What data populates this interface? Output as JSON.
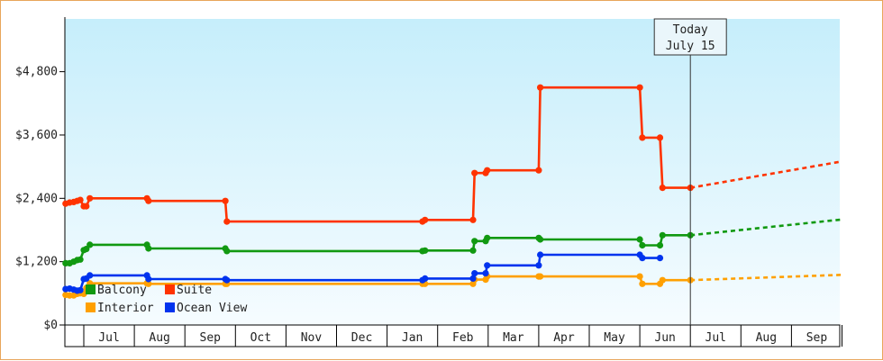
{
  "chart_data": {
    "type": "line",
    "title": "",
    "xlabel": "",
    "ylabel": "",
    "ylim": [
      0,
      5800
    ],
    "y_ticks": [
      {
        "value": 0,
        "label": "$0"
      },
      {
        "value": 1200,
        "label": "$1,200"
      },
      {
        "value": 2400,
        "label": "$2,400"
      },
      {
        "value": 3600,
        "label": "$3,600"
      },
      {
        "value": 4800,
        "label": "$4,800"
      }
    ],
    "x_range": [
      -0.36,
      15.0
    ],
    "x_ticks": [
      {
        "value": 0.5,
        "label": "Jul"
      },
      {
        "value": 1.5,
        "label": "Aug"
      },
      {
        "value": 2.5,
        "label": "Sep"
      },
      {
        "value": 3.5,
        "label": "Oct"
      },
      {
        "value": 4.5,
        "label": "Nov"
      },
      {
        "value": 5.5,
        "label": "Dec"
      },
      {
        "value": 6.5,
        "label": "Jan"
      },
      {
        "value": 7.5,
        "label": "Feb"
      },
      {
        "value": 8.5,
        "label": "Mar"
      },
      {
        "value": 9.5,
        "label": "Apr"
      },
      {
        "value": 10.5,
        "label": "May"
      },
      {
        "value": 11.5,
        "label": "Jun"
      },
      {
        "value": 12.5,
        "label": "Jul"
      },
      {
        "value": 13.5,
        "label": "Aug"
      },
      {
        "value": 14.5,
        "label": "Sep"
      }
    ],
    "today": {
      "x": 12.0,
      "line1": "Today",
      "line2": "July 15"
    },
    "grid": false,
    "legend_position": "bottom-left",
    "series": [
      {
        "name": "Suite",
        "color": "#ff3300",
        "points": [
          [
            -0.36,
            2300
          ],
          [
            -0.28,
            2320
          ],
          [
            -0.2,
            2330
          ],
          [
            -0.13,
            2350
          ],
          [
            -0.07,
            2370
          ],
          [
            0.0,
            2250
          ],
          [
            0.05,
            2250
          ],
          [
            0.12,
            2400
          ],
          [
            1.25,
            2400
          ],
          [
            1.28,
            2350
          ],
          [
            2.8,
            2350
          ],
          [
            2.83,
            1960
          ],
          [
            6.7,
            1960
          ],
          [
            6.75,
            1990
          ],
          [
            7.7,
            1990
          ],
          [
            7.73,
            2880
          ],
          [
            7.95,
            2880
          ],
          [
            7.98,
            2930
          ],
          [
            9.0,
            2930
          ],
          [
            9.03,
            4500
          ],
          [
            11.0,
            4500
          ],
          [
            11.05,
            3550
          ],
          [
            11.4,
            3550
          ],
          [
            11.45,
            2600
          ],
          [
            12.0,
            2600
          ]
        ],
        "forecast": [
          [
            12.0,
            2600
          ],
          [
            15.0,
            3100
          ]
        ]
      },
      {
        "name": "Balcony",
        "color": "#119911",
        "points": [
          [
            -0.36,
            1170
          ],
          [
            -0.28,
            1170
          ],
          [
            -0.2,
            1200
          ],
          [
            -0.13,
            1230
          ],
          [
            -0.07,
            1240
          ],
          [
            0.0,
            1420
          ],
          [
            0.05,
            1440
          ],
          [
            0.12,
            1520
          ],
          [
            1.25,
            1520
          ],
          [
            1.28,
            1450
          ],
          [
            2.8,
            1450
          ],
          [
            2.83,
            1400
          ],
          [
            6.7,
            1400
          ],
          [
            6.75,
            1410
          ],
          [
            7.7,
            1410
          ],
          [
            7.73,
            1590
          ],
          [
            7.95,
            1590
          ],
          [
            7.98,
            1650
          ],
          [
            9.0,
            1650
          ],
          [
            9.03,
            1620
          ],
          [
            11.0,
            1620
          ],
          [
            11.05,
            1510
          ],
          [
            11.4,
            1510
          ],
          [
            11.45,
            1700
          ],
          [
            12.0,
            1700
          ]
        ],
        "forecast": [
          [
            12.0,
            1700
          ],
          [
            15.0,
            2000
          ]
        ]
      },
      {
        "name": "Interior",
        "color": "#ffa000",
        "points": [
          [
            -0.36,
            570
          ],
          [
            -0.28,
            560
          ],
          [
            -0.2,
            560
          ],
          [
            -0.13,
            590
          ],
          [
            -0.07,
            600
          ],
          [
            0.0,
            590
          ],
          [
            0.05,
            700
          ],
          [
            0.12,
            790
          ],
          [
            1.25,
            790
          ],
          [
            1.28,
            780
          ],
          [
            2.8,
            780
          ],
          [
            2.83,
            780
          ],
          [
            6.7,
            780
          ],
          [
            6.75,
            780
          ],
          [
            7.7,
            780
          ],
          [
            7.73,
            860
          ],
          [
            7.95,
            860
          ],
          [
            7.98,
            920
          ],
          [
            9.0,
            920
          ],
          [
            9.03,
            920
          ],
          [
            11.0,
            920
          ],
          [
            11.05,
            780
          ],
          [
            11.4,
            780
          ],
          [
            11.45,
            850
          ],
          [
            12.0,
            850
          ]
        ],
        "forecast": [
          [
            12.0,
            850
          ],
          [
            15.0,
            950
          ]
        ]
      },
      {
        "name": "Ocean View",
        "color": "#0033ee",
        "points": [
          [
            -0.36,
            680
          ],
          [
            -0.28,
            690
          ],
          [
            -0.2,
            670
          ],
          [
            -0.13,
            650
          ],
          [
            -0.07,
            660
          ],
          [
            0.0,
            870
          ],
          [
            0.05,
            880
          ],
          [
            0.12,
            940
          ],
          [
            1.25,
            940
          ],
          [
            1.28,
            870
          ],
          [
            2.8,
            870
          ],
          [
            2.83,
            850
          ],
          [
            6.7,
            850
          ],
          [
            6.75,
            880
          ],
          [
            7.7,
            880
          ],
          [
            7.73,
            980
          ],
          [
            7.95,
            980
          ],
          [
            7.98,
            1130
          ],
          [
            9.0,
            1130
          ],
          [
            9.03,
            1330
          ],
          [
            11.0,
            1330
          ],
          [
            11.05,
            1270
          ],
          [
            11.4,
            1270
          ]
        ],
        "forecast": []
      }
    ],
    "legend": [
      {
        "name": "Balcony",
        "color": "#119911"
      },
      {
        "name": "Suite",
        "color": "#ff3300"
      },
      {
        "name": "Interior",
        "color": "#ffa000"
      },
      {
        "name": "Ocean View",
        "color": "#0033ee"
      }
    ]
  }
}
